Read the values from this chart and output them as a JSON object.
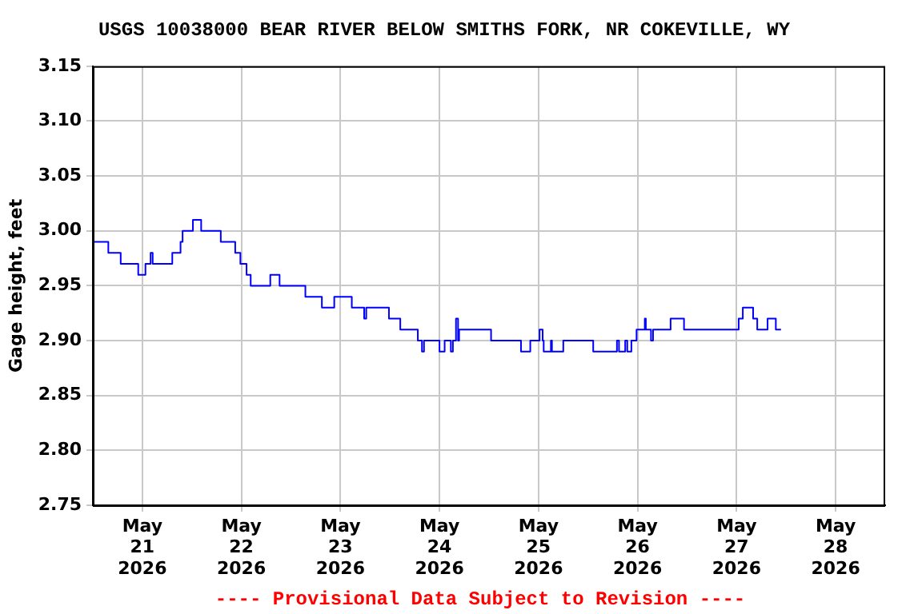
{
  "chart_data": {
    "type": "step",
    "title": "USGS 10038000 BEAR RIVER BELOW SMITHS FORK, NR COKEVILLE, WY",
    "ylabel": "Gage height, feet",
    "annotations": [
      "---- Provisional Data Subject to Revision ----"
    ],
    "x": [
      "2026-05-20T12:00",
      "2026-05-20T15:45",
      "2026-05-20T18:45",
      "2026-05-20T23:00",
      "2026-05-21T00:45",
      "2026-05-21T02:00",
      "2026-05-21T02:30",
      "2026-05-21T07:15",
      "2026-05-21T09:15",
      "2026-05-21T09:45",
      "2026-05-21T12:15",
      "2026-05-21T14:15",
      "2026-05-21T19:00",
      "2026-05-21T22:30",
      "2026-05-21T23:45",
      "2026-05-22T01:15",
      "2026-05-22T02:15",
      "2026-05-22T07:00",
      "2026-05-22T09:15",
      "2026-05-22T15:30",
      "2026-05-22T19:30",
      "2026-05-22T22:30",
      "2026-05-23T02:45",
      "2026-05-23T05:45",
      "2026-05-23T06:15",
      "2026-05-23T11:45",
      "2026-05-23T14:30",
      "2026-05-23T18:45",
      "2026-05-23T19:45",
      "2026-05-23T20:15",
      "2026-05-24T00:00",
      "2026-05-24T01:15",
      "2026-05-24T02:45",
      "2026-05-24T03:15",
      "2026-05-24T04:00",
      "2026-05-24T04:30",
      "2026-05-24T04:45",
      "2026-05-24T12:30",
      "2026-05-24T19:45",
      "2026-05-24T22:00",
      "2026-05-25T00:15",
      "2026-05-25T01:00",
      "2026-05-25T01:15",
      "2026-05-25T03:00",
      "2026-05-25T03:15",
      "2026-05-25T06:00",
      "2026-05-25T13:15",
      "2026-05-25T19:00",
      "2026-05-25T19:30",
      "2026-05-25T21:00",
      "2026-05-25T21:30",
      "2026-05-25T22:30",
      "2026-05-25T23:45",
      "2026-05-26T01:45",
      "2026-05-26T02:00",
      "2026-05-26T03:15",
      "2026-05-26T03:45",
      "2026-05-26T08:00",
      "2026-05-26T11:15",
      "2026-05-27T00:30",
      "2026-05-27T01:30",
      "2026-05-27T04:00",
      "2026-05-27T05:00",
      "2026-05-27T07:30",
      "2026-05-27T09:30",
      "2026-05-27T10:45"
    ],
    "series": [
      {
        "color": "#0000ff",
        "values": [
          2.99,
          2.98,
          2.97,
          2.96,
          2.97,
          2.98,
          2.97,
          2.98,
          2.99,
          3.0,
          3.01,
          3.0,
          2.99,
          2.98,
          2.97,
          2.96,
          2.95,
          2.96,
          2.95,
          2.94,
          2.93,
          2.94,
          2.93,
          2.92,
          2.93,
          2.92,
          2.91,
          2.9,
          2.89,
          2.9,
          2.89,
          2.9,
          2.89,
          2.9,
          2.92,
          2.9,
          2.91,
          2.9,
          2.89,
          2.9,
          2.91,
          2.9,
          2.89,
          2.9,
          2.89,
          2.9,
          2.89,
          2.9,
          2.89,
          2.9,
          2.89,
          2.9,
          2.91,
          2.92,
          2.91,
          2.9,
          2.91,
          2.92,
          2.91,
          2.92,
          2.93,
          2.92,
          2.91,
          2.92,
          2.91,
          2.91
        ]
      }
    ],
    "xlim": [
      "2026-05-20T12:00",
      "2026-05-28T12:00"
    ],
    "xticks": [
      {
        "value": "2026-05-21",
        "label": "May\n21\n2026"
      },
      {
        "value": "2026-05-22",
        "label": "May\n22\n2026"
      },
      {
        "value": "2026-05-23",
        "label": "May\n23\n2026"
      },
      {
        "value": "2026-05-24",
        "label": "May\n24\n2026"
      },
      {
        "value": "2026-05-25",
        "label": "May\n25\n2026"
      },
      {
        "value": "2026-05-26",
        "label": "May\n26\n2026"
      },
      {
        "value": "2026-05-27",
        "label": "May\n27\n2026"
      },
      {
        "value": "2026-05-28",
        "label": "May\n28\n2026"
      }
    ],
    "ylim": [
      2.75,
      3.15
    ],
    "yticks": [
      {
        "value": 2.75,
        "label": "2.75"
      },
      {
        "value": 2.8,
        "label": "2.80"
      },
      {
        "value": 2.85,
        "label": "2.85"
      },
      {
        "value": 2.9,
        "label": "2.90"
      },
      {
        "value": 2.95,
        "label": "2.95"
      },
      {
        "value": 3.0,
        "label": "3.00"
      },
      {
        "value": 3.05,
        "label": "3.05"
      },
      {
        "value": 3.1,
        "label": "3.10"
      },
      {
        "value": 3.15,
        "label": "3.15"
      }
    ],
    "grid": true,
    "legend": false,
    "marker": "none",
    "line_style": "solid"
  }
}
